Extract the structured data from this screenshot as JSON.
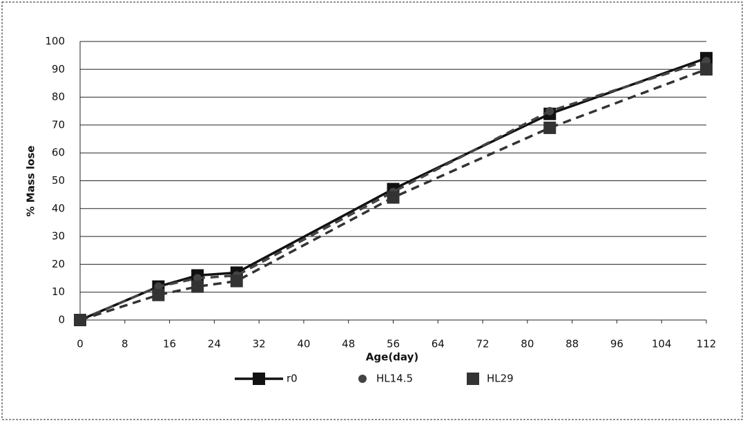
{
  "chart_data": {
    "type": "line",
    "x_label": "Age(day)",
    "y_label": "% Mass lose",
    "x": [
      0,
      14,
      21,
      28,
      56,
      84,
      112
    ],
    "series": [
      {
        "name": "r0",
        "color": "#111111",
        "dash": false,
        "marker": "square",
        "values": [
          0,
          12,
          16,
          17,
          47,
          74,
          94
        ]
      },
      {
        "name": "HL14.5",
        "color": "#444444",
        "dash": true,
        "marker": "circle",
        "values": [
          0,
          12,
          15,
          16,
          46,
          75,
          93
        ]
      },
      {
        "name": "HL29",
        "color": "#333333",
        "dash": true,
        "marker": "square",
        "values": [
          0,
          9,
          12,
          14,
          44,
          69,
          90
        ]
      }
    ],
    "xlim": [
      0,
      112
    ],
    "xticks": [
      0,
      8,
      16,
      24,
      32,
      40,
      48,
      56,
      64,
      72,
      80,
      88,
      96,
      104,
      112
    ],
    "ylim": [
      0,
      100
    ],
    "yticks": [
      0,
      10,
      20,
      30,
      40,
      50,
      60,
      70,
      80,
      90,
      100
    ],
    "grid": true,
    "legend": "bottom"
  }
}
